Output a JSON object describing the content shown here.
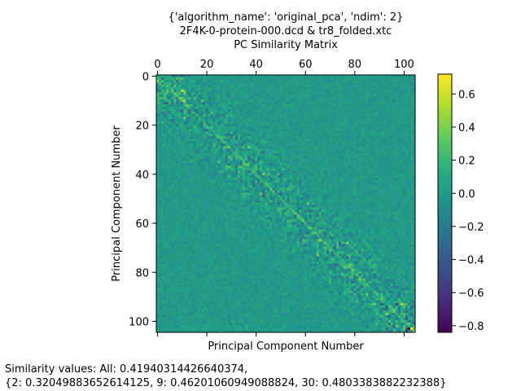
{
  "chart_data": {
    "type": "heatmap",
    "title_lines": [
      "{'algorithm_name': 'original_pca', 'ndim': 2}",
      "2F4K-0-protein-000.dcd & tr8_folded.xtc",
      "PC Similarity Matrix"
    ],
    "xlabel": "Principal Component Number",
    "ylabel": "Principal Component Number",
    "matrix_size": 105,
    "x_ticks": [
      0,
      20,
      40,
      60,
      80,
      100
    ],
    "y_ticks": [
      0,
      20,
      40,
      60,
      80,
      100
    ],
    "x_ticks_position": "top",
    "colormap": "viridis",
    "colorbar": {
      "vmin": -0.84,
      "vmax": 0.72,
      "ticks": [
        -0.8,
        -0.6,
        -0.4,
        -0.2,
        0.0,
        0.2,
        0.4,
        0.6
      ],
      "tick_labels": [
        "−0.8",
        "−0.6",
        "−0.4",
        "−0.2",
        "0.0",
        "0.2",
        "0.4",
        "0.6"
      ]
    },
    "description_values": {
      "diagonal_trend": "positive similarity band along the diagonal, strongest near indices 0-10 and 95-105",
      "background_level": 0.0
    }
  },
  "footer": {
    "line1": "Similarity values: All: 0.41940314426640374,",
    "line2": "{2: 0.32049883652614125, 9: 0.46201060949088824, 30: 0.4803383882232388}"
  }
}
